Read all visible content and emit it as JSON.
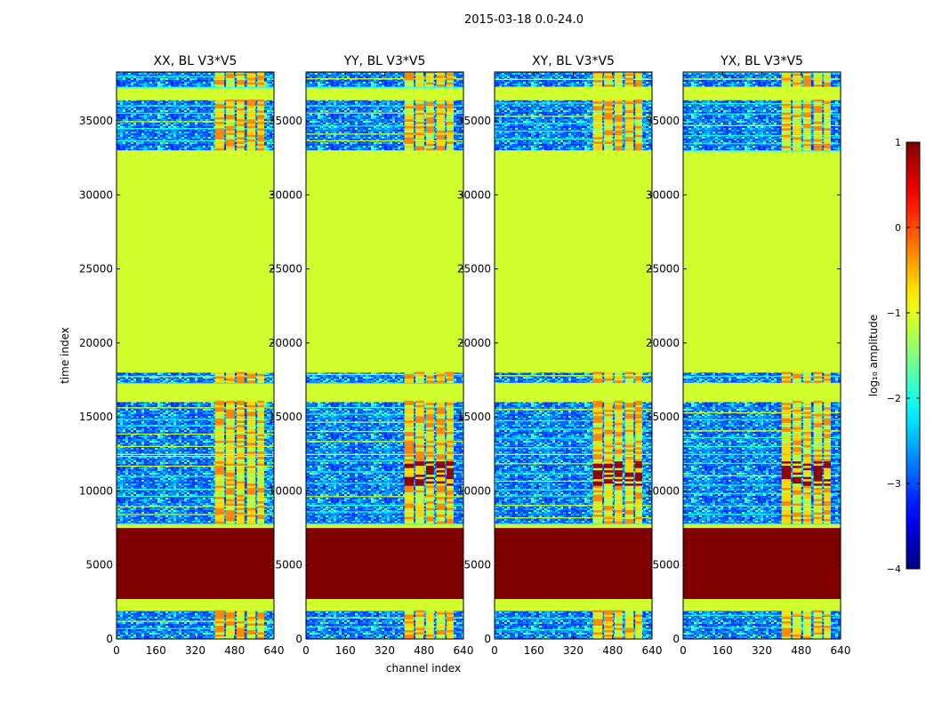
{
  "chart_data": {
    "type": "heatmap",
    "suptitle": "2015-03-18 0.0-24.0",
    "xlabel": "channel index",
    "ylabel": "time index",
    "xlim": [
      0,
      640
    ],
    "ylim": [
      0,
      38300
    ],
    "xticks": [
      0,
      160,
      320,
      480,
      640
    ],
    "yticks": [
      0,
      5000,
      10000,
      15000,
      20000,
      25000,
      30000,
      35000
    ],
    "panels": [
      {
        "title": "XX, BL V3*V5",
        "pol": "XX"
      },
      {
        "title": "YY, BL V3*V5",
        "pol": "YY"
      },
      {
        "title": "XY, BL V3*V5",
        "pol": "XY"
      },
      {
        "title": "YX, BL V3*V5",
        "pol": "YX"
      }
    ],
    "time_blocks": [
      {
        "t0": 0,
        "t1": 1900,
        "fill": "noise",
        "value": -3.0
      },
      {
        "t0": 1900,
        "t1": 2700,
        "fill": "flat",
        "value": -1.1
      },
      {
        "t0": 2700,
        "t1": 7500,
        "fill": "flat",
        "value": 1.0
      },
      {
        "t0": 7500,
        "t1": 7800,
        "fill": "flat",
        "value": -1.1
      },
      {
        "t0": 7800,
        "t1": 12500,
        "fill": "noise",
        "value": -3.0
      },
      {
        "t0": 12500,
        "t1": 16000,
        "fill": "noise",
        "value": -2.3
      },
      {
        "t0": 16000,
        "t1": 17300,
        "fill": "flat",
        "value": -1.1
      },
      {
        "t0": 17300,
        "t1": 18000,
        "fill": "noise",
        "value": -2.8
      },
      {
        "t0": 18000,
        "t1": 33000,
        "fill": "flat",
        "value": -1.1
      },
      {
        "t0": 33000,
        "t1": 36400,
        "fill": "noise",
        "value": -3.0
      },
      {
        "t0": 36400,
        "t1": 37300,
        "fill": "flat",
        "value": -1.1
      },
      {
        "t0": 37300,
        "t1": 38300,
        "fill": "noise",
        "value": -3.0
      }
    ],
    "rfi_channel_range": [
      400,
      600
    ],
    "colorbar": {
      "label": "log₁₀ amplitude",
      "vmin": -4,
      "vmax": 1,
      "ticks": [
        1,
        0,
        -1,
        -2,
        -3,
        -4
      ],
      "tick_labels": [
        "1",
        "0",
        "−1",
        "−2",
        "−3",
        "−4"
      ],
      "colormap": "jet"
    }
  }
}
